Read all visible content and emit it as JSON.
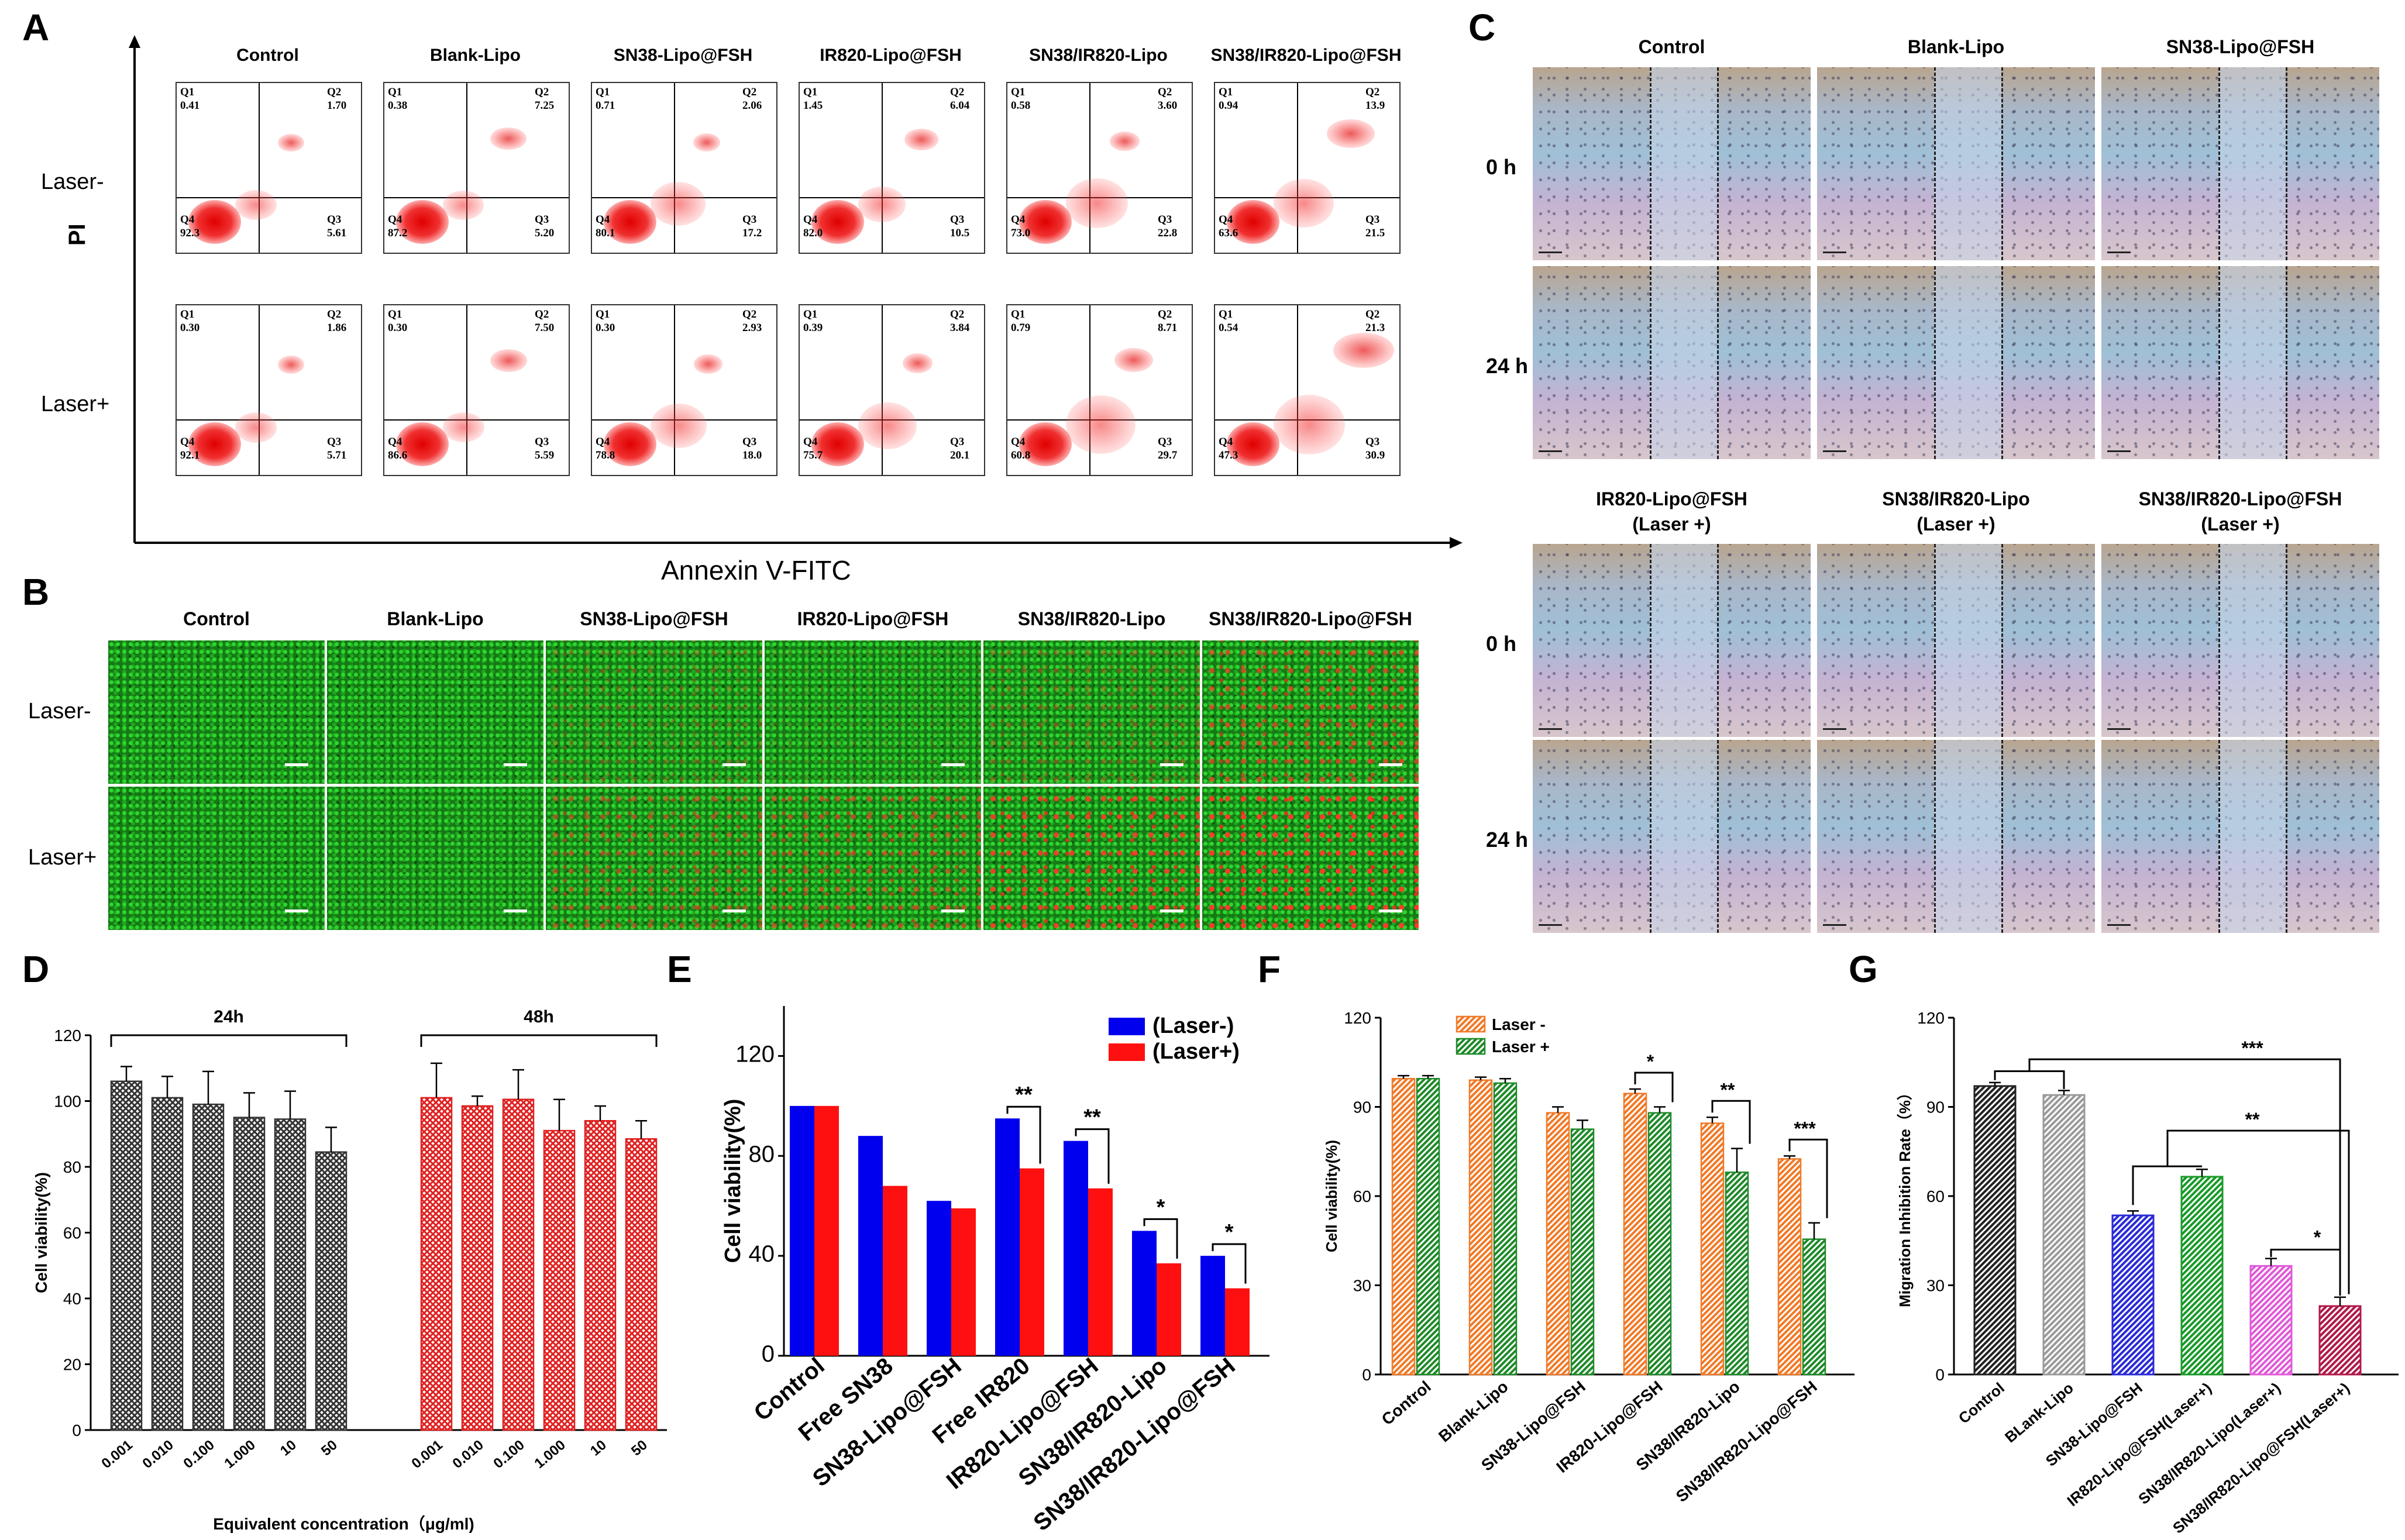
{
  "panels": {
    "A": {
      "letter": "A",
      "columns": [
        "Control",
        "Blank-Lipo",
        "SN38-Lipo@FSH",
        "IR820-Lipo@FSH",
        "SN38/IR820-Lipo",
        "SN38/IR820-Lipo@FSH"
      ],
      "rows": [
        "Laser-",
        "Laser+"
      ],
      "ylabel": "PI",
      "xlabel": "Annexin V-FITC",
      "quadrants": [
        [
          {
            "Q1": "0.41",
            "Q2": "1.70",
            "Q3": "5.61",
            "Q4": "92.3"
          },
          {
            "Q1": "0.38",
            "Q2": "7.25",
            "Q3": "5.20",
            "Q4": "87.2"
          },
          {
            "Q1": "0.71",
            "Q2": "2.06",
            "Q3": "17.2",
            "Q4": "80.1"
          },
          {
            "Q1": "1.45",
            "Q2": "6.04",
            "Q3": "10.5",
            "Q4": "82.0"
          },
          {
            "Q1": "0.58",
            "Q2": "3.60",
            "Q3": "22.8",
            "Q4": "73.0"
          },
          {
            "Q1": "0.94",
            "Q2": "13.9",
            "Q3": "21.5",
            "Q4": "63.6"
          }
        ],
        [
          {
            "Q1": "0.30",
            "Q2": "1.86",
            "Q3": "5.71",
            "Q4": "92.1"
          },
          {
            "Q1": "0.30",
            "Q2": "7.50",
            "Q3": "5.59",
            "Q4": "86.6"
          },
          {
            "Q1": "0.30",
            "Q2": "2.93",
            "Q3": "18.0",
            "Q4": "78.8"
          },
          {
            "Q1": "0.39",
            "Q2": "3.84",
            "Q3": "20.1",
            "Q4": "75.7"
          },
          {
            "Q1": "0.79",
            "Q2": "8.71",
            "Q3": "29.7",
            "Q4": "60.8"
          },
          {
            "Q1": "0.54",
            "Q2": "21.3",
            "Q3": "30.9",
            "Q4": "47.3"
          }
        ]
      ]
    },
    "B": {
      "letter": "B",
      "columns": [
        "Control",
        "Blank-Lipo",
        "SN38-Lipo@FSH",
        "IR820-Lipo@FSH",
        "SN38/IR820-Lipo",
        "SN38/IR820-Lipo@FSH"
      ],
      "rows": [
        "Laser-",
        "Laser+"
      ],
      "dead_fraction": [
        [
          0.0,
          0.0,
          0.18,
          0.08,
          0.22,
          0.45
        ],
        [
          0.0,
          0.02,
          0.35,
          0.4,
          0.55,
          0.75
        ]
      ]
    },
    "C": {
      "letter": "C",
      "top_columns": [
        "Control",
        "Blank-Lipo",
        "SN38-Lipo@FSH"
      ],
      "bottom_columns": [
        {
          "line1": "IR820-Lipo@FSH",
          "line2": "(Laser +)"
        },
        {
          "line1": "SN38/IR820-Lipo",
          "line2": "(Laser +)"
        },
        {
          "line1": "SN38/IR820-Lipo@FSH",
          "line2": "(Laser +)"
        }
      ],
      "rows": [
        "0 h",
        "24 h"
      ]
    },
    "D": {
      "letter": "D"
    },
    "E": {
      "letter": "E"
    },
    "F": {
      "letter": "F"
    },
    "G": {
      "letter": "G"
    }
  },
  "chart_data": [
    {
      "id": "D",
      "type": "bar",
      "xlabel": "Equivalent concentration（μg/ml)",
      "ylabel": "Cell viability(%)",
      "ylim": [
        0,
        120
      ],
      "yticks": [
        "0",
        "20",
        "40",
        "60",
        "80",
        "100",
        "120"
      ],
      "groups": [
        {
          "label": "24h",
          "color": "#333333",
          "categories": [
            "0.001",
            "0.010",
            "0.100",
            "1.000",
            "10",
            "50"
          ],
          "values": [
            106,
            101,
            99,
            95,
            94.5,
            84.5
          ],
          "errors": [
            4.5,
            6.5,
            10,
            7.5,
            8.5,
            7.5
          ]
        },
        {
          "label": "48h",
          "color": "#e02020",
          "categories": [
            "0.001",
            "0.010",
            "0.100",
            "1.000",
            "10",
            "50"
          ],
          "values": [
            101,
            98.5,
            100.5,
            91,
            94,
            88.5
          ],
          "errors": [
            10.5,
            3,
            9,
            9.5,
            4.5,
            5.5
          ]
        }
      ]
    },
    {
      "id": "E",
      "type": "bar",
      "ylabel": "Cell viability(%)",
      "ylim": [
        0,
        140
      ],
      "yticks": [
        "0",
        "40",
        "80",
        "120"
      ],
      "categories": [
        "Control",
        "Free SN38",
        "SN38-Lipo@FSH",
        "Free IR820",
        "IR820-Lipo@FSH",
        "SN38/IR820-Lipo",
        "SN38/IR820-Lipo@FSH"
      ],
      "series": [
        {
          "name": "(Laser-)",
          "color": "#0000ee",
          "values": [
            100,
            88,
            62,
            95,
            86,
            50,
            40
          ]
        },
        {
          "name": "(Laser+)",
          "color": "#ff1010",
          "values": [
            100,
            68,
            59,
            75,
            67,
            37,
            27
          ]
        }
      ],
      "significance": [
        "",
        "",
        "",
        "**",
        "**",
        "*",
        "*"
      ]
    },
    {
      "id": "F",
      "type": "bar",
      "ylabel": "Cell viability(%)",
      "ylim": [
        0,
        120
      ],
      "yticks": [
        "0",
        "30",
        "60",
        "90",
        "120"
      ],
      "categories": [
        "Control",
        "Blank-Lipo",
        "SN38-Lipo@FSH",
        "IR820-Lipo@FSH",
        "SN38/IR820-Lipo",
        "SN38/IR820-Lipo@FSH"
      ],
      "series": [
        {
          "name": "Laser -",
          "color": "#f07a28",
          "values": [
            99.5,
            99,
            88,
            94.5,
            84.5,
            72.5
          ],
          "errors": [
            1,
            1,
            2,
            1.5,
            2,
            1
          ]
        },
        {
          "name": "Laser +",
          "color": "#1f8a2a",
          "values": [
            99.5,
            98,
            82.5,
            88,
            68,
            45.5
          ],
          "errors": [
            1,
            1.5,
            3,
            2,
            8,
            5.5
          ]
        }
      ],
      "significance": [
        "",
        "",
        "",
        "*",
        "**",
        "***"
      ]
    },
    {
      "id": "G",
      "type": "bar",
      "ylabel": "Migration Inhibition Rate（%）",
      "ylim": [
        0,
        120
      ],
      "yticks": [
        "0",
        "30",
        "60",
        "90",
        "120"
      ],
      "categories": [
        "Control",
        "BLank-Lipo",
        "SN38-Lipo@FSH",
        "IR820-Lipo@FSH(Laser+)",
        "SN38/IR820-Lipo(Laser+)",
        "SN38/IR820-Lipo@FSH(Laser+)"
      ],
      "values": [
        97,
        94,
        53.5,
        66.5,
        36.5,
        23
      ],
      "errors": [
        1.2,
        1.5,
        1.5,
        2.5,
        2.5,
        3
      ],
      "colors": [
        "#222222",
        "#9a9a9a",
        "#2a2ad8",
        "#1a9a2a",
        "#e05ad8",
        "#b01a4a"
      ],
      "significance": [
        "***",
        "**",
        "*"
      ]
    }
  ]
}
